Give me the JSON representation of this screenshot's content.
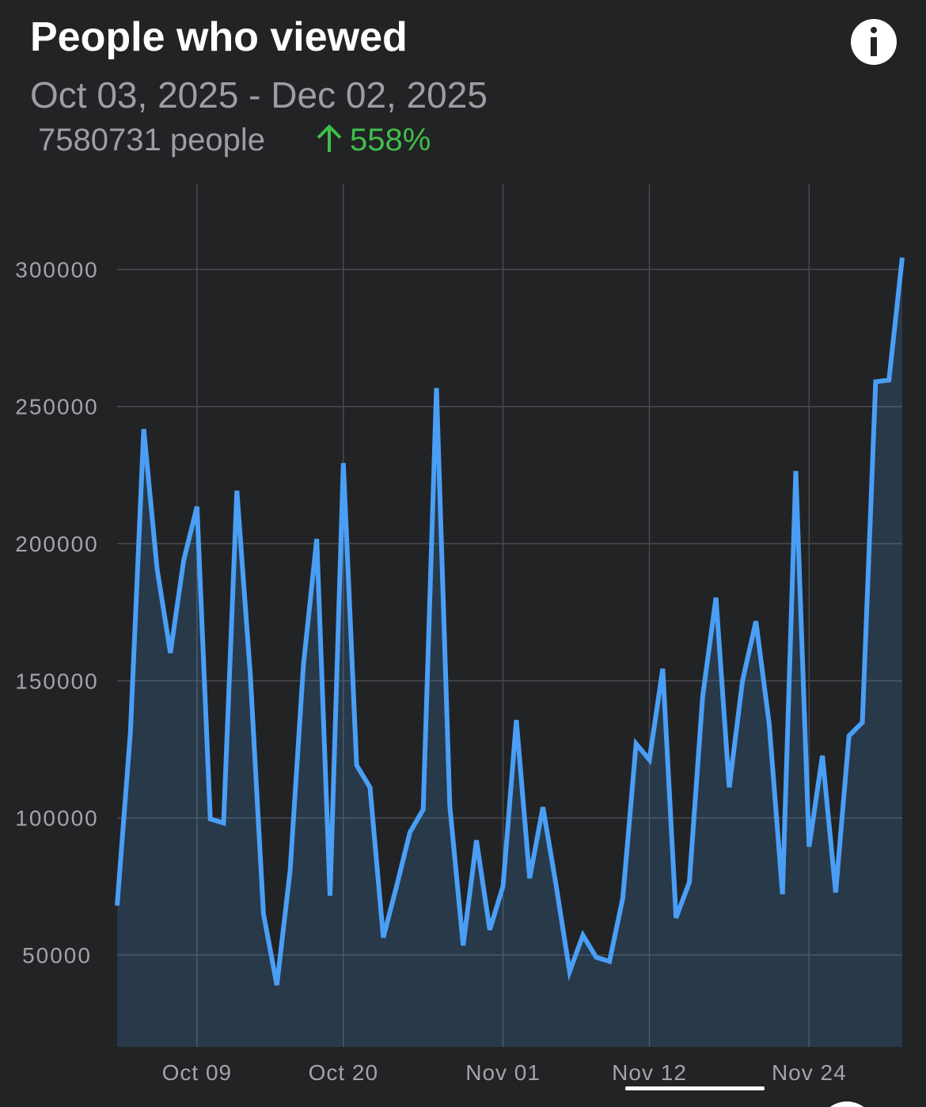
{
  "chart_data": {
    "type": "line",
    "title": "People who viewed",
    "subtitle": "Oct 03, 2025 - Dec 02, 2025",
    "summary": "7580731 people",
    "change": "558%",
    "x": [
      "2025-10-03",
      "2025-10-04",
      "2025-10-05",
      "2025-10-06",
      "2025-10-07",
      "2025-10-08",
      "2025-10-09",
      "2025-10-10",
      "2025-10-11",
      "2025-10-12",
      "2025-10-13",
      "2025-10-14",
      "2025-10-15",
      "2025-10-16",
      "2025-10-17",
      "2025-10-18",
      "2025-10-19",
      "2025-10-20",
      "2025-10-21",
      "2025-10-22",
      "2025-10-23",
      "2025-10-24",
      "2025-10-25",
      "2025-10-26",
      "2025-10-27",
      "2025-10-28",
      "2025-10-29",
      "2025-10-30",
      "2025-10-31",
      "2025-11-01",
      "2025-11-02",
      "2025-11-03",
      "2025-11-04",
      "2025-11-05",
      "2025-11-06",
      "2025-11-07",
      "2025-11-08",
      "2025-11-09",
      "2025-11-10",
      "2025-11-11",
      "2025-11-12",
      "2025-11-13",
      "2025-11-14",
      "2025-11-15",
      "2025-11-16",
      "2025-11-17",
      "2025-11-18",
      "2025-11-19",
      "2025-11-20",
      "2025-11-21",
      "2025-11-22",
      "2025-11-23",
      "2025-11-24",
      "2025-11-25",
      "2025-11-26",
      "2025-11-27",
      "2025-11-28",
      "2025-11-29",
      "2025-11-30",
      "2025-12-01"
    ],
    "series": [
      {
        "name": "People",
        "color": "#4a9ef5",
        "values": [
          68000,
          131300,
          241750,
          191000,
          160150,
          193900,
          213500,
          99600,
          98150,
          219300,
          152950,
          65000,
          39000,
          80850,
          155800,
          201700,
          71600,
          229350,
          119200,
          111100,
          56350,
          75100,
          94700,
          103050,
          256750,
          104500,
          53450,
          91800,
          59200,
          75100,
          135650,
          77950,
          103900,
          75100,
          43950,
          57200,
          49150,
          47700,
          70750,
          127000,
          121200,
          154400,
          63550,
          76550,
          144300,
          180300,
          111100,
          150050,
          171700,
          134200,
          72200,
          226500,
          89500,
          122650,
          72800,
          129900,
          134800,
          259050,
          259650,
          304300
        ]
      }
    ],
    "xlim": [
      "2025-10-03",
      "2025-12-01"
    ],
    "xticks": [
      {
        "value": "2025-10-09",
        "label": "Oct 09"
      },
      {
        "value": "2025-10-20",
        "label": "Oct 20"
      },
      {
        "value": "2025-11-01",
        "label": "Nov 01"
      },
      {
        "value": "2025-11-12",
        "label": "Nov 12"
      },
      {
        "value": "2025-11-24",
        "label": "Nov 24"
      }
    ],
    "ylim": [
      16500,
      331000
    ],
    "yticks": [
      50000,
      100000,
      150000,
      200000,
      250000,
      300000
    ],
    "grid": true
  }
}
